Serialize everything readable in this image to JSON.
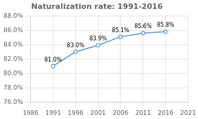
{
  "chart_data": {
    "type": "line",
    "title": "Naturalization rate: 1991-2016",
    "x": [
      1991,
      1996,
      2001,
      2006,
      2011,
      2016
    ],
    "values": [
      0.81,
      0.83,
      0.839,
      0.851,
      0.856,
      0.858
    ],
    "value_labels": [
      "81.0%",
      "83.0%",
      "83.9%",
      "85.1%",
      "85.6%",
      "85.8%"
    ],
    "data_labels": true,
    "color": "#5b9bd5",
    "marker": "o",
    "xlim": [
      1986,
      2021
    ],
    "xticks": [
      1986,
      1991,
      1996,
      2001,
      2006,
      2011,
      2016,
      2021
    ],
    "ylim": [
      0.76,
      0.88
    ],
    "yticks": [
      {
        "value": 0.76,
        "label": "76.0%"
      },
      {
        "value": 0.78,
        "label": "78.0%"
      },
      {
        "value": 0.8,
        "label": "80.0%"
      },
      {
        "value": 0.82,
        "label": "82.0%"
      },
      {
        "value": 0.84,
        "label": "84.0%"
      },
      {
        "value": 0.86,
        "label": "86.0%"
      },
      {
        "value": 0.88,
        "label": "88.0%"
      }
    ],
    "grid": true
  }
}
